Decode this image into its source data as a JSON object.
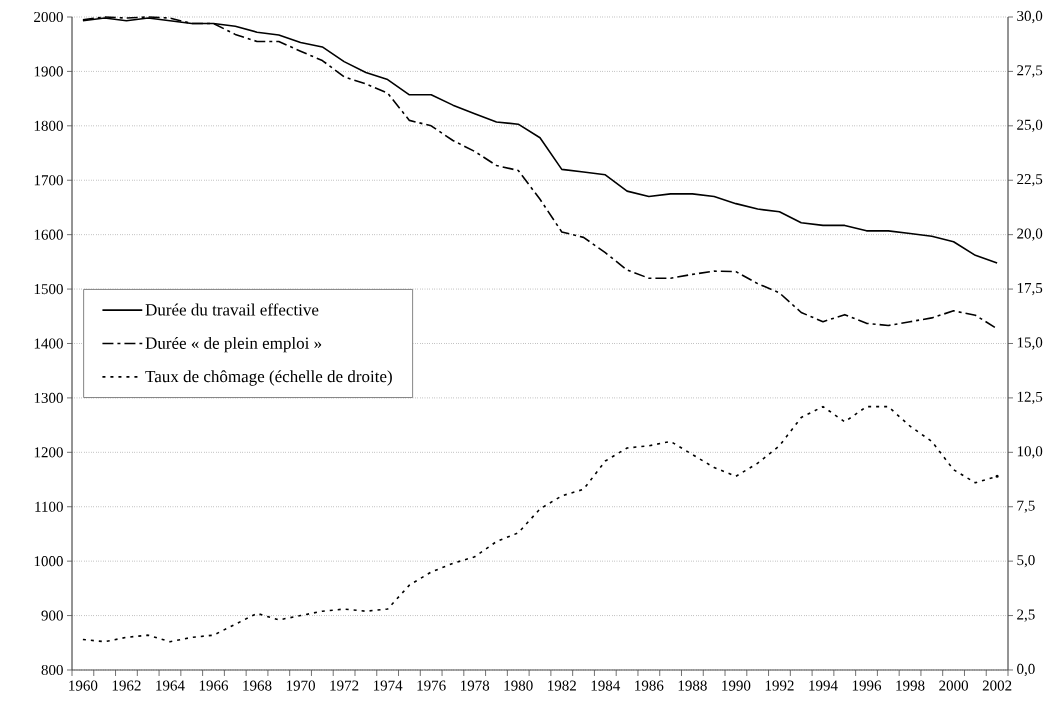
{
  "chart_data": {
    "type": "line",
    "categories": [
      "1960",
      null,
      "1962",
      null,
      "1964",
      null,
      "1966",
      null,
      "1968",
      null,
      "1970",
      null,
      "1972",
      null,
      "1974",
      null,
      "1976",
      null,
      "1978",
      null,
      "1980",
      null,
      "1982",
      null,
      "1984",
      null,
      "1986",
      null,
      "1988",
      null,
      "1990",
      null,
      "1992",
      null,
      "1994",
      null,
      "1996",
      null,
      "1998",
      null,
      "2000",
      null,
      "2002"
    ],
    "series": [
      {
        "name": "Durée du travail effective",
        "color": "#000000",
        "line_style": "solid",
        "values": [
          1993,
          1998,
          1993,
          1998,
          1993,
          1988,
          1988,
          1983,
          1972,
          1967,
          1953,
          1945,
          1918,
          1898,
          1885,
          1857,
          1857,
          1838,
          1822,
          1807,
          1803,
          1778,
          1720,
          1715,
          1710,
          1680,
          1670,
          1675,
          1675,
          1670,
          1657,
          1647,
          1642,
          1622,
          1617,
          1617,
          1607,
          1607,
          1602,
          1597,
          1587,
          1562,
          1548
        ]
      },
      {
        "name": "Durée « de plein emploi »",
        "color": "#000000",
        "line_style": "dashed",
        "values": [
          1995,
          2000,
          1998,
          2000,
          1998,
          1988,
          1988,
          1968,
          1955,
          1955,
          1937,
          1920,
          1890,
          1877,
          1860,
          1810,
          1800,
          1773,
          1753,
          1727,
          1718,
          1665,
          1605,
          1595,
          1567,
          1535,
          1520,
          1520,
          1527,
          1533,
          1532,
          1510,
          1493,
          1457,
          1440,
          1453,
          1437,
          1433,
          1440,
          1447,
          1460,
          1452,
          1427
        ]
      },
      {
        "name": "Taux de chômage (échelle de droite)",
        "color": "#000000",
        "line_style": "dotted",
        "axis": "y2",
        "values": [
          1.4,
          1.3,
          1.5,
          1.6,
          1.3,
          1.5,
          1.6,
          2.1,
          2.6,
          2.3,
          2.5,
          2.7,
          2.8,
          2.7,
          2.8,
          3.9,
          4.5,
          4.9,
          5.2,
          5.9,
          6.3,
          7.4,
          8.0,
          8.3,
          9.6,
          10.2,
          10.3,
          10.5,
          9.9,
          9.3,
          8.9,
          9.5,
          10.3,
          11.6,
          12.1,
          11.4,
          12.1,
          12.1,
          11.2,
          10.5,
          9.2,
          8.6,
          8.9
        ]
      }
    ],
    "ylim": [
      800,
      2000
    ],
    "yticks": [
      800,
      900,
      1000,
      1100,
      1200,
      1300,
      1400,
      1500,
      1600,
      1700,
      1800,
      1900,
      2000
    ],
    "y2lim": [
      0,
      30
    ],
    "y2ticks": [
      {
        "value": 0,
        "label": "0,0"
      },
      {
        "value": 2.5,
        "label": "2,5"
      },
      {
        "value": 5,
        "label": "5,0"
      },
      {
        "value": 7.5,
        "label": "7,5"
      },
      {
        "value": 10,
        "label": "10,0"
      },
      {
        "value": 12.5,
        "label": "12,5"
      },
      {
        "value": 15,
        "label": "15,0"
      },
      {
        "value": 17.5,
        "label": "17,5"
      },
      {
        "value": 20,
        "label": "20,0"
      },
      {
        "value": 22.5,
        "label": "22,5"
      },
      {
        "value": 25,
        "label": "25,0"
      },
      {
        "value": 27.5,
        "label": "27,5"
      },
      {
        "value": 30,
        "label": "30,0"
      }
    ],
    "grid": "y",
    "legend": "left"
  }
}
